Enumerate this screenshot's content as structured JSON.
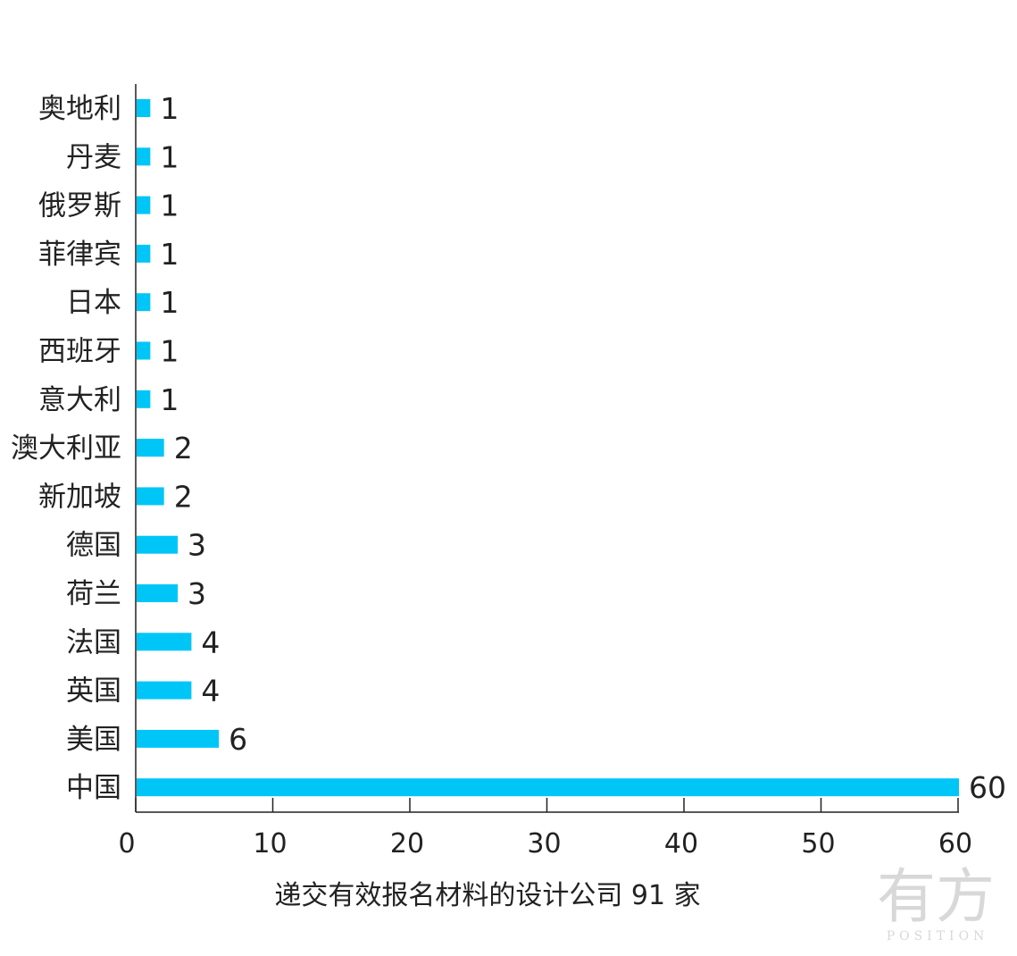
{
  "chart_data": {
    "type": "bar",
    "orientation": "horizontal",
    "categories": [
      "奥地利",
      "丹麦",
      "俄罗斯",
      "菲律宾",
      "日本",
      "西班牙",
      "意大利",
      "澳大利亚",
      "新加坡",
      "德国",
      "荷兰",
      "法国",
      "英国",
      "美国",
      "中国"
    ],
    "values": [
      1,
      1,
      1,
      1,
      1,
      1,
      1,
      2,
      2,
      3,
      3,
      4,
      4,
      6,
      60
    ],
    "xlabel": "递交有效报名材料的设计公司 91 家",
    "ylabel": "",
    "xlim": [
      0,
      60
    ],
    "xticks": [
      "0",
      "10",
      "20",
      "30",
      "40",
      "50",
      "60"
    ],
    "bar_color": "#00c6f8",
    "grid": false,
    "legend": "none"
  },
  "watermark": {
    "main": "有方",
    "sub": "POSITION"
  }
}
